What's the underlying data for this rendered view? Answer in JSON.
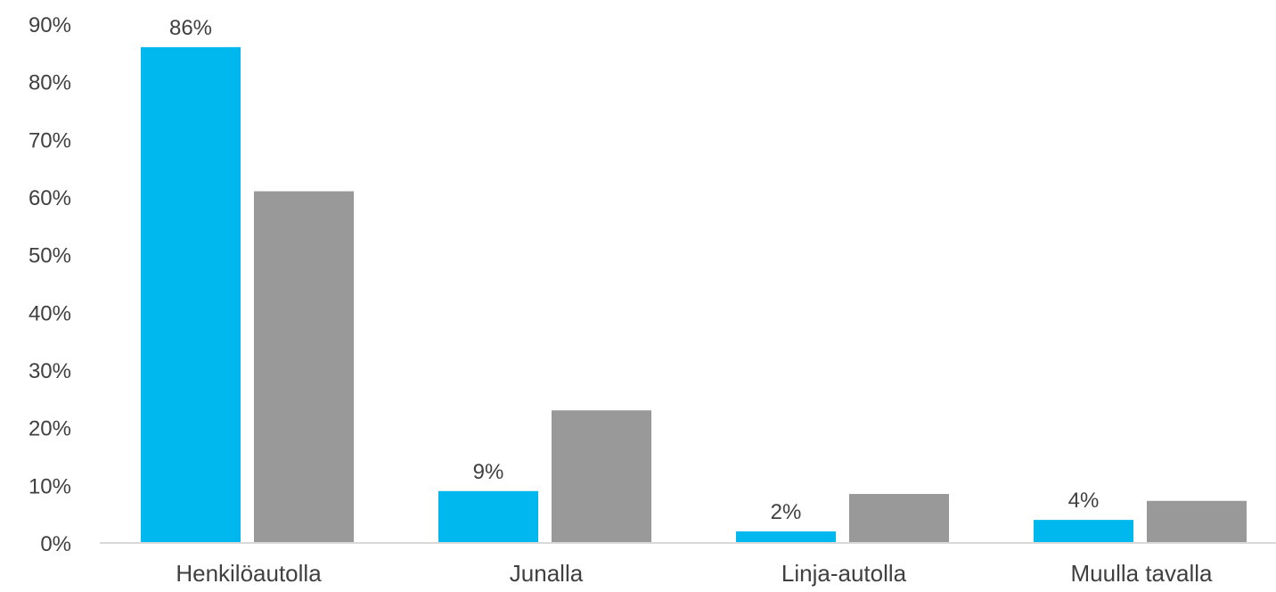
{
  "chart_data": {
    "type": "bar",
    "title": "",
    "xlabel": "",
    "ylabel": "",
    "categories": [
      "Henkilöautolla",
      "Junalla",
      "Linja-autolla",
      "Muulla tavalla"
    ],
    "ylim": [
      0,
      90
    ],
    "yticks": [
      "0%",
      "10%",
      "20%",
      "30%",
      "40%",
      "50%",
      "60%",
      "70%",
      "80%",
      "90%"
    ],
    "series": [
      {
        "color": "#00B8EE",
        "values": [
          86,
          9,
          2,
          4
        ],
        "data_labels": [
          "86%",
          "9%",
          "2%",
          "4%"
        ]
      },
      {
        "color": "#999999",
        "values": [
          61,
          23,
          8.5,
          7.3
        ]
      }
    ],
    "legend": "none",
    "grid": false
  }
}
